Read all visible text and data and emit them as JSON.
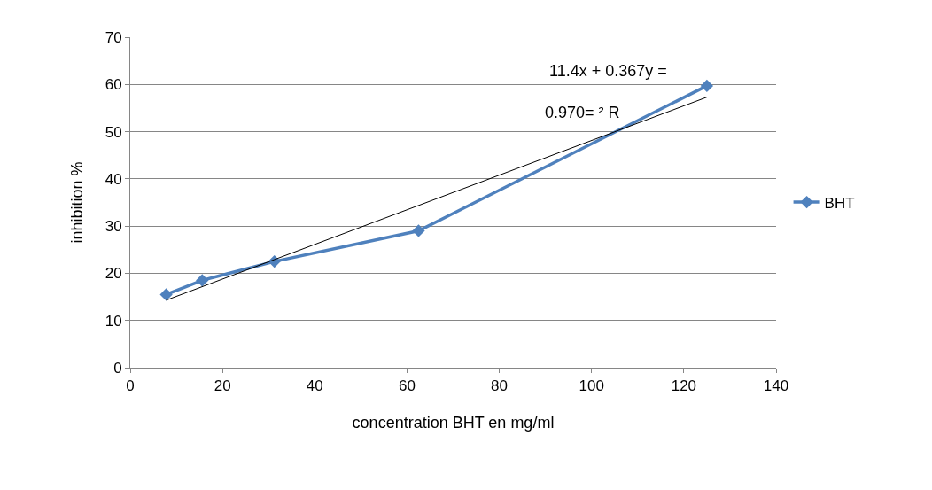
{
  "chart_data": {
    "type": "line",
    "xlabel": "concentration BHT en mg/ml",
    "ylabel": "inhibition %",
    "x": [
      7.8,
      15.6,
      31.25,
      62.5,
      125
    ],
    "series": [
      {
        "name": "BHT",
        "color": "#4f81bd",
        "values": [
          15.5,
          18.5,
          22.5,
          29,
          59.7
        ],
        "marker": "diamond"
      },
      {
        "type": "line",
        "color": "#000000",
        "x": [
          7.8,
          125
        ],
        "values": [
          14.3,
          57.3
        ],
        "marker": "none"
      }
    ],
    "annotations": [
      "11.4x + 0.367y =",
      "0.970= ² R"
    ],
    "xlim": [
      0,
      140
    ],
    "xticks": [
      0,
      20,
      40,
      60,
      80,
      100,
      120,
      140
    ],
    "ylim": [
      0,
      70
    ],
    "yticks": [
      0,
      10,
      20,
      30,
      40,
      50,
      60,
      70
    ],
    "grid": "y",
    "legend": "right",
    "line_style": "solid"
  }
}
